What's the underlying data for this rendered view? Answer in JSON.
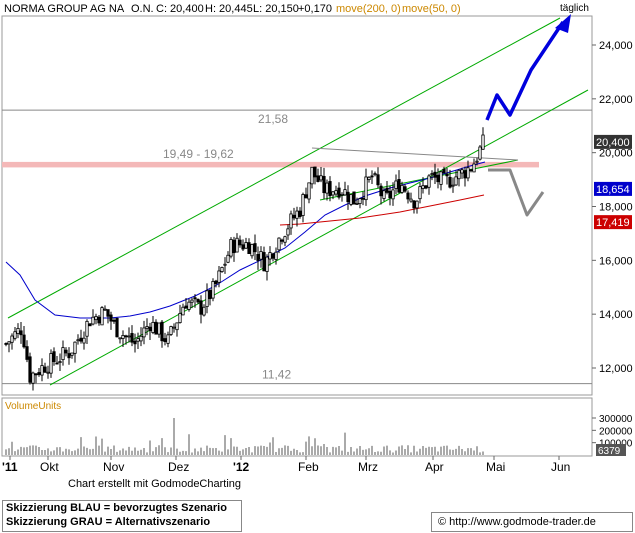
{
  "header": {
    "name": "NORMA GROUP AG NA",
    "unit": "O.N.",
    "close": "C: 20,400",
    "high": "H: 20,445",
    "low": "L: 20,150",
    "change": "+0,170",
    "ma200": "move(200, 0)",
    "ma50": "move(50, 0)",
    "period": "täglich"
  },
  "colors": {
    "ma200": "#cc0000",
    "ma50": "#0000cc",
    "channel": "#00aa00",
    "resistance_zone": "#f4b8b8",
    "scenario_blue": "#0000dd",
    "scenario_gray": "#888888",
    "price_tag": "#333333"
  },
  "chart_data": {
    "type": "candlestick",
    "y_range": [
      11000,
      25200
    ],
    "y_ticks": [
      "24,000",
      "22,000",
      "20,000",
      "18,000",
      "16,000",
      "14,000",
      "12,000"
    ],
    "y_tick_values": [
      24000,
      22000,
      20000,
      18000,
      16000,
      14000,
      12000
    ],
    "x_labels": [
      "'11",
      "Okt",
      "Nov",
      "Dez",
      "'12",
      "Feb",
      "Mrz",
      "Apr",
      "Mai",
      "Jun"
    ],
    "horizontal_levels": [
      {
        "label": "21,58",
        "value": 21580
      },
      {
        "label": "19,49 - 19,62",
        "value_low": 19490,
        "value_high": 19620
      },
      {
        "label": "11,42",
        "value": 11420
      }
    ],
    "price_tags": [
      {
        "text": "20,400",
        "value": 20400
      },
      {
        "text": "18,654",
        "value": 18654
      },
      {
        "text": "17,419",
        "value": 17419
      }
    ],
    "volume": {
      "label": "VolumeUnits",
      "ticks": [
        "300000",
        "200000",
        "100000"
      ],
      "tick_values": [
        300000,
        200000,
        100000
      ],
      "last": "6379"
    }
  },
  "footer": {
    "credit": "Chart erstellt mit GodmodeCharting",
    "legend_blue": "Skizzierung BLAU = bevorzugtes Szenario",
    "legend_gray": "Skizzierung GRAU = Alternativszenario",
    "url": "http://www.godmode-trader.de"
  }
}
